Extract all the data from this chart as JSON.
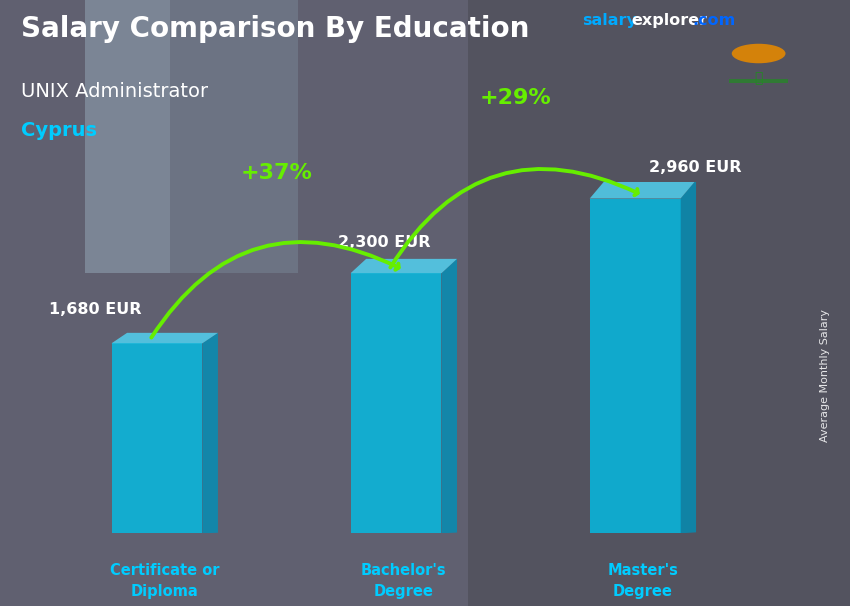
{
  "title": "Salary Comparison By Education",
  "subtitle": "UNIX Administrator",
  "country": "Cyprus",
  "categories": [
    "Certificate or\nDiploma",
    "Bachelor's\nDegree",
    "Master's\nDegree"
  ],
  "values": [
    1680,
    2300,
    2960
  ],
  "value_labels": [
    "1,680 EUR",
    "2,300 EUR",
    "2,960 EUR"
  ],
  "pct_labels": [
    "+37%",
    "+29%"
  ],
  "front_color": "#00C0E8",
  "side_color": "#0090B8",
  "top_color": "#50D8F8",
  "ylabel": "Average Monthly Salary",
  "title_color": "#FFFFFF",
  "subtitle_color": "#FFFFFF",
  "country_color": "#00CCFF",
  "value_color": "#FFFFFF",
  "label_color": "#00CCFF",
  "pct_color": "#66EE00",
  "arrow_color": "#66EE00",
  "bg_color": "#555560",
  "brand_salary_color": "#00AAFF",
  "brand_explorer_color": "#FFFFFF",
  "brand_com_color": "#0066FF"
}
